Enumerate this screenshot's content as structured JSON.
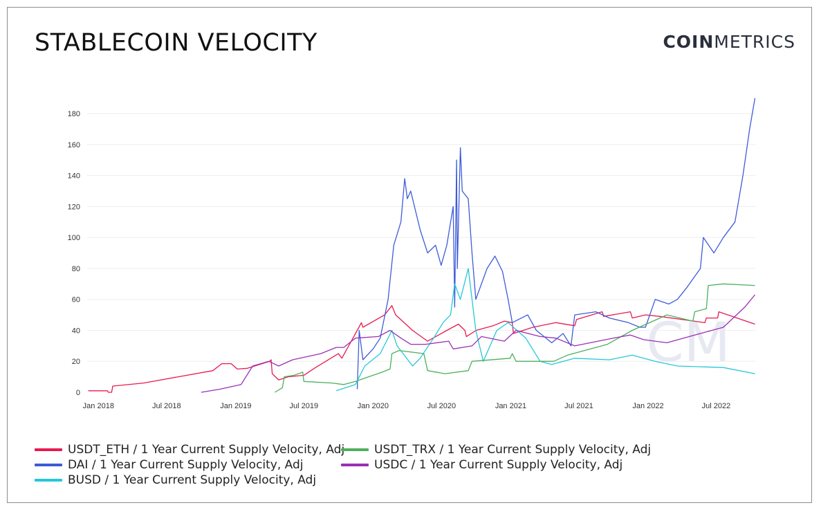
{
  "title": "STABLECOIN VELOCITY",
  "logo": {
    "bold": "COIN",
    "light": "METRICS",
    "watermark": "CM"
  },
  "chart_data": {
    "type": "line",
    "title": "STABLECOIN VELOCITY",
    "xlabel": "",
    "ylabel": "",
    "xlim": [
      "2017-12-02",
      "2022-10-13"
    ],
    "ylim": [
      0,
      190
    ],
    "grid": true,
    "legend_position": "bottom",
    "y_ticks": [
      0,
      20,
      40,
      60,
      80,
      100,
      120,
      140,
      160,
      180
    ],
    "x_ticks": [
      {
        "date": "2018-01-01",
        "label": "Jan 2018"
      },
      {
        "date": "2018-07-01",
        "label": "Jul 2018"
      },
      {
        "date": "2019-01-01",
        "label": "Jan 2019"
      },
      {
        "date": "2019-07-01",
        "label": "Jul 2019"
      },
      {
        "date": "2020-01-01",
        "label": "Jan 2020"
      },
      {
        "date": "2020-07-01",
        "label": "Jul 2020"
      },
      {
        "date": "2021-01-01",
        "label": "Jan 2021"
      },
      {
        "date": "2021-07-01",
        "label": "Jul 2021"
      },
      {
        "date": "2022-01-01",
        "label": "Jan 2022"
      },
      {
        "date": "2022-07-01",
        "label": "Jul 2022"
      }
    ],
    "series": [
      {
        "name": "USDT_ETH / 1 Year Current Supply Velocity, Adj",
        "color": "#e8194f",
        "points": [
          [
            "2017-12-05",
            1
          ],
          [
            "2018-01-25",
            1
          ],
          [
            "2018-01-27",
            0
          ],
          [
            "2018-02-05",
            0
          ],
          [
            "2018-02-08",
            4
          ],
          [
            "2018-05-01",
            6
          ],
          [
            "2018-08-01",
            10
          ],
          [
            "2018-11-01",
            14
          ],
          [
            "2018-11-25",
            18.5
          ],
          [
            "2018-12-20",
            18.5
          ],
          [
            "2019-01-05",
            15
          ],
          [
            "2019-02-01",
            15.5
          ],
          [
            "2019-04-01",
            20
          ],
          [
            "2019-04-05",
            21
          ],
          [
            "2019-04-08",
            12
          ],
          [
            "2019-04-25",
            8
          ],
          [
            "2019-05-20",
            10
          ],
          [
            "2019-07-01",
            11
          ],
          [
            "2019-08-01",
            16
          ],
          [
            "2019-10-01",
            25
          ],
          [
            "2019-10-10",
            22
          ],
          [
            "2019-11-20",
            40
          ],
          [
            "2019-12-01",
            45
          ],
          [
            "2019-12-05",
            42
          ],
          [
            "2020-02-01",
            50
          ],
          [
            "2020-02-20",
            56
          ],
          [
            "2020-03-01",
            50
          ],
          [
            "2020-04-15",
            40
          ],
          [
            "2020-05-25",
            33
          ],
          [
            "2020-07-15",
            40
          ],
          [
            "2020-08-15",
            44
          ],
          [
            "2020-09-01",
            40
          ],
          [
            "2020-09-05",
            36
          ],
          [
            "2020-10-01",
            40
          ],
          [
            "2020-11-15",
            43
          ],
          [
            "2020-12-15",
            46
          ],
          [
            "2021-01-05",
            45
          ],
          [
            "2021-01-08",
            38
          ],
          [
            "2021-03-01",
            42
          ],
          [
            "2021-05-01",
            45
          ],
          [
            "2021-06-20",
            43
          ],
          [
            "2021-06-25",
            47
          ],
          [
            "2021-09-01",
            52
          ],
          [
            "2021-09-05",
            49
          ],
          [
            "2021-11-15",
            52
          ],
          [
            "2021-11-20",
            48
          ],
          [
            "2021-12-25",
            50
          ],
          [
            "2022-02-01",
            49
          ],
          [
            "2022-06-01",
            45
          ],
          [
            "2022-06-05",
            48
          ],
          [
            "2022-07-05",
            48
          ],
          [
            "2022-07-08",
            52
          ],
          [
            "2022-10-12",
            44
          ]
        ]
      },
      {
        "name": "DAI / 1 Year Current Supply Velocity, Adj",
        "color": "#3d5bd9",
        "points": [
          [
            "2019-11-20",
            2
          ],
          [
            "2019-11-25",
            40
          ],
          [
            "2019-12-05",
            21
          ],
          [
            "2020-01-01",
            28
          ],
          [
            "2020-01-20",
            35
          ],
          [
            "2020-02-10",
            60
          ],
          [
            "2020-02-25",
            95
          ],
          [
            "2020-03-15",
            110
          ],
          [
            "2020-03-25",
            138
          ],
          [
            "2020-04-01",
            125
          ],
          [
            "2020-04-10",
            130
          ],
          [
            "2020-05-05",
            105
          ],
          [
            "2020-05-25",
            90
          ],
          [
            "2020-06-15",
            95
          ],
          [
            "2020-06-30",
            82
          ],
          [
            "2020-07-15",
            95
          ],
          [
            "2020-08-01",
            120
          ],
          [
            "2020-08-05",
            55
          ],
          [
            "2020-08-10",
            150
          ],
          [
            "2020-08-12",
            80
          ],
          [
            "2020-08-20",
            158
          ],
          [
            "2020-08-25",
            130
          ],
          [
            "2020-09-10",
            125
          ],
          [
            "2020-09-20",
            90
          ],
          [
            "2020-09-30",
            60
          ],
          [
            "2020-10-30",
            80
          ],
          [
            "2020-11-20",
            88
          ],
          [
            "2020-12-10",
            78
          ],
          [
            "2020-12-25",
            60
          ],
          [
            "2021-01-05",
            45
          ],
          [
            "2021-02-15",
            50
          ],
          [
            "2021-03-10",
            40
          ],
          [
            "2021-04-20",
            32
          ],
          [
            "2021-05-20",
            38
          ],
          [
            "2021-06-10",
            30
          ],
          [
            "2021-06-20",
            50
          ],
          [
            "2021-08-15",
            52
          ],
          [
            "2021-09-20",
            48
          ],
          [
            "2021-11-10",
            45
          ],
          [
            "2021-12-10",
            42
          ],
          [
            "2021-12-25",
            42
          ],
          [
            "2022-01-20",
            60
          ],
          [
            "2022-02-25",
            57
          ],
          [
            "2022-03-20",
            60
          ],
          [
            "2022-04-15",
            68
          ],
          [
            "2022-05-20",
            80
          ],
          [
            "2022-05-28",
            100
          ],
          [
            "2022-06-25",
            90
          ],
          [
            "2022-07-20",
            100
          ],
          [
            "2022-08-20",
            110
          ],
          [
            "2022-09-10",
            140
          ],
          [
            "2022-09-28",
            170
          ],
          [
            "2022-10-12",
            190
          ]
        ]
      },
      {
        "name": "BUSD / 1 Year Current Supply Velocity, Adj",
        "color": "#25c8d8",
        "points": [
          [
            "2019-09-25",
            1
          ],
          [
            "2019-11-15",
            5
          ],
          [
            "2019-12-10",
            17
          ],
          [
            "2020-01-20",
            25
          ],
          [
            "2020-02-20",
            40
          ],
          [
            "2020-03-05",
            30
          ],
          [
            "2020-04-15",
            17
          ],
          [
            "2020-05-05",
            22
          ],
          [
            "2020-06-10",
            35
          ],
          [
            "2020-07-05",
            45
          ],
          [
            "2020-07-25",
            50
          ],
          [
            "2020-08-05",
            70
          ],
          [
            "2020-08-20",
            60
          ],
          [
            "2020-09-10",
            80
          ],
          [
            "2020-09-30",
            40
          ],
          [
            "2020-10-20",
            20
          ],
          [
            "2020-11-25",
            40
          ],
          [
            "2020-12-25",
            45
          ],
          [
            "2021-02-10",
            35
          ],
          [
            "2021-03-20",
            20
          ],
          [
            "2021-04-20",
            18
          ],
          [
            "2021-06-20",
            22
          ],
          [
            "2021-09-20",
            21
          ],
          [
            "2021-11-20",
            24
          ],
          [
            "2022-01-20",
            20
          ],
          [
            "2022-03-20",
            17
          ],
          [
            "2022-07-20",
            16
          ],
          [
            "2022-10-12",
            12
          ]
        ]
      },
      {
        "name": "USDT_TRX / 1 Year Current Supply Velocity, Adj",
        "color": "#4cb05a",
        "points": [
          [
            "2019-04-15",
            0
          ],
          [
            "2019-05-05",
            3
          ],
          [
            "2019-05-10",
            10
          ],
          [
            "2019-06-05",
            11
          ],
          [
            "2019-06-28",
            13
          ],
          [
            "2019-07-01",
            7
          ],
          [
            "2019-09-15",
            6
          ],
          [
            "2019-10-15",
            5
          ],
          [
            "2019-11-15",
            7
          ],
          [
            "2020-01-25",
            13
          ],
          [
            "2020-02-15",
            15
          ],
          [
            "2020-02-20",
            25
          ],
          [
            "2020-03-10",
            27
          ],
          [
            "2020-05-15",
            25
          ],
          [
            "2020-05-25",
            14
          ],
          [
            "2020-07-10",
            12
          ],
          [
            "2020-09-10",
            14
          ],
          [
            "2020-09-20",
            20
          ],
          [
            "2020-12-30",
            22
          ],
          [
            "2021-01-05",
            25
          ],
          [
            "2021-01-15",
            20
          ],
          [
            "2021-04-25",
            20
          ],
          [
            "2021-06-01",
            24
          ],
          [
            "2021-09-15",
            31
          ],
          [
            "2021-11-20",
            40
          ],
          [
            "2022-02-20",
            50
          ],
          [
            "2022-04-30",
            46
          ],
          [
            "2022-05-05",
            52
          ],
          [
            "2022-06-05",
            54
          ],
          [
            "2022-06-10",
            69
          ],
          [
            "2022-07-20",
            70
          ],
          [
            "2022-10-12",
            69
          ]
        ]
      },
      {
        "name": "USDC / 1 Year Current Supply Velocity, Adj",
        "color": "#9b2fb5",
        "points": [
          [
            "2018-10-01",
            0
          ],
          [
            "2018-11-20",
            2
          ],
          [
            "2019-01-15",
            5
          ],
          [
            "2019-02-15",
            17
          ],
          [
            "2019-03-30",
            20
          ],
          [
            "2019-04-25",
            17
          ],
          [
            "2019-06-01",
            21
          ],
          [
            "2019-08-15",
            25
          ],
          [
            "2019-09-25",
            29
          ],
          [
            "2019-10-15",
            29
          ],
          [
            "2019-11-15",
            35
          ],
          [
            "2020-01-15",
            36
          ],
          [
            "2020-02-15",
            40
          ],
          [
            "2020-03-15",
            35
          ],
          [
            "2020-04-10",
            31
          ],
          [
            "2020-05-20",
            31
          ],
          [
            "2020-07-20",
            33
          ],
          [
            "2020-08-01",
            28
          ],
          [
            "2020-09-20",
            30
          ],
          [
            "2020-10-15",
            36
          ],
          [
            "2020-12-15",
            33
          ],
          [
            "2021-01-15",
            40
          ],
          [
            "2021-03-20",
            36
          ],
          [
            "2021-05-01",
            35
          ],
          [
            "2021-06-20",
            30
          ],
          [
            "2021-09-30",
            35
          ],
          [
            "2021-11-15",
            37
          ],
          [
            "2021-12-20",
            34
          ],
          [
            "2022-02-20",
            32
          ],
          [
            "2022-05-20",
            38
          ],
          [
            "2022-07-20",
            42
          ],
          [
            "2022-09-15",
            55
          ],
          [
            "2022-10-12",
            63
          ]
        ]
      }
    ]
  }
}
